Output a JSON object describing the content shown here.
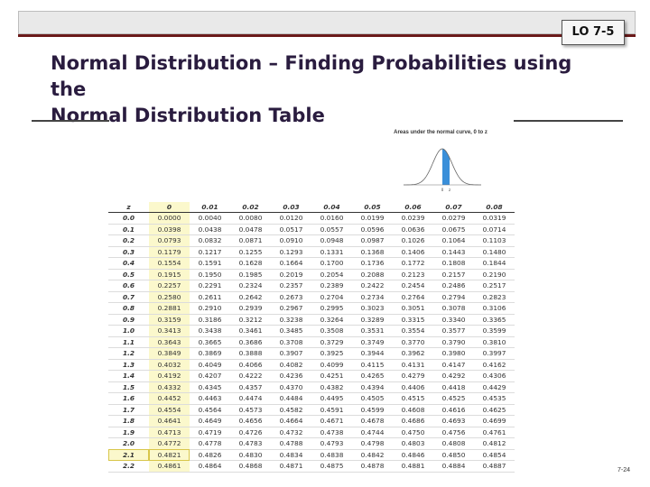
{
  "badge": "LO 7-5",
  "title_line1": "Normal Distribution – Finding Probabilities using the",
  "title_line2": "Normal Distribution Table",
  "curve_caption": "Areas under the normal curve, 0 to z",
  "curve_labels": {
    "zero": "0",
    "z": "z"
  },
  "table": {
    "headers": [
      "z",
      "0",
      "0.01",
      "0.02",
      "0.03",
      "0.04",
      "0.05",
      "0.06",
      "0.07",
      "0.08"
    ],
    "rows": [
      [
        "0.0",
        "0.0000",
        "0.0040",
        "0.0080",
        "0.0120",
        "0.0160",
        "0.0199",
        "0.0239",
        "0.0279",
        "0.0319"
      ],
      [
        "0.1",
        "0.0398",
        "0.0438",
        "0.0478",
        "0.0517",
        "0.0557",
        "0.0596",
        "0.0636",
        "0.0675",
        "0.0714"
      ],
      [
        "0.2",
        "0.0793",
        "0.0832",
        "0.0871",
        "0.0910",
        "0.0948",
        "0.0987",
        "0.1026",
        "0.1064",
        "0.1103"
      ],
      [
        "0.3",
        "0.1179",
        "0.1217",
        "0.1255",
        "0.1293",
        "0.1331",
        "0.1368",
        "0.1406",
        "0.1443",
        "0.1480"
      ],
      [
        "0.4",
        "0.1554",
        "0.1591",
        "0.1628",
        "0.1664",
        "0.1700",
        "0.1736",
        "0.1772",
        "0.1808",
        "0.1844"
      ],
      [
        "0.5",
        "0.1915",
        "0.1950",
        "0.1985",
        "0.2019",
        "0.2054",
        "0.2088",
        "0.2123",
        "0.2157",
        "0.2190"
      ],
      [
        "0.6",
        "0.2257",
        "0.2291",
        "0.2324",
        "0.2357",
        "0.2389",
        "0.2422",
        "0.2454",
        "0.2486",
        "0.2517"
      ],
      [
        "0.7",
        "0.2580",
        "0.2611",
        "0.2642",
        "0.2673",
        "0.2704",
        "0.2734",
        "0.2764",
        "0.2794",
        "0.2823"
      ],
      [
        "0.8",
        "0.2881",
        "0.2910",
        "0.2939",
        "0.2967",
        "0.2995",
        "0.3023",
        "0.3051",
        "0.3078",
        "0.3106"
      ],
      [
        "0.9",
        "0.3159",
        "0.3186",
        "0.3212",
        "0.3238",
        "0.3264",
        "0.3289",
        "0.3315",
        "0.3340",
        "0.3365"
      ],
      [
        "1.0",
        "0.3413",
        "0.3438",
        "0.3461",
        "0.3485",
        "0.3508",
        "0.3531",
        "0.3554",
        "0.3577",
        "0.3599"
      ],
      [
        "1.1",
        "0.3643",
        "0.3665",
        "0.3686",
        "0.3708",
        "0.3729",
        "0.3749",
        "0.3770",
        "0.3790",
        "0.3810"
      ],
      [
        "1.2",
        "0.3849",
        "0.3869",
        "0.3888",
        "0.3907",
        "0.3925",
        "0.3944",
        "0.3962",
        "0.3980",
        "0.3997"
      ],
      [
        "1.3",
        "0.4032",
        "0.4049",
        "0.4066",
        "0.4082",
        "0.4099",
        "0.4115",
        "0.4131",
        "0.4147",
        "0.4162"
      ],
      [
        "1.4",
        "0.4192",
        "0.4207",
        "0.4222",
        "0.4236",
        "0.4251",
        "0.4265",
        "0.4279",
        "0.4292",
        "0.4306"
      ],
      [
        "1.5",
        "0.4332",
        "0.4345",
        "0.4357",
        "0.4370",
        "0.4382",
        "0.4394",
        "0.4406",
        "0.4418",
        "0.4429"
      ],
      [
        "1.6",
        "0.4452",
        "0.4463",
        "0.4474",
        "0.4484",
        "0.4495",
        "0.4505",
        "0.4515",
        "0.4525",
        "0.4535"
      ],
      [
        "1.7",
        "0.4554",
        "0.4564",
        "0.4573",
        "0.4582",
        "0.4591",
        "0.4599",
        "0.4608",
        "0.4616",
        "0.4625"
      ],
      [
        "1.8",
        "0.4641",
        "0.4649",
        "0.4656",
        "0.4664",
        "0.4671",
        "0.4678",
        "0.4686",
        "0.4693",
        "0.4699"
      ],
      [
        "1.9",
        "0.4713",
        "0.4719",
        "0.4726",
        "0.4732",
        "0.4738",
        "0.4744",
        "0.4750",
        "0.4756",
        "0.4761"
      ],
      [
        "2.0",
        "0.4772",
        "0.4778",
        "0.4783",
        "0.4788",
        "0.4793",
        "0.4798",
        "0.4803",
        "0.4808",
        "0.4812"
      ],
      [
        "2.1",
        "0.4821",
        "0.4826",
        "0.4830",
        "0.4834",
        "0.4838",
        "0.4842",
        "0.4846",
        "0.4850",
        "0.4854"
      ],
      [
        "2.2",
        "0.4861",
        "0.4864",
        "0.4868",
        "0.4871",
        "0.4875",
        "0.4878",
        "0.4881",
        "0.4884",
        "0.4887"
      ]
    ],
    "highlighted_row": "2.1"
  },
  "slide_number": "7-24"
}
